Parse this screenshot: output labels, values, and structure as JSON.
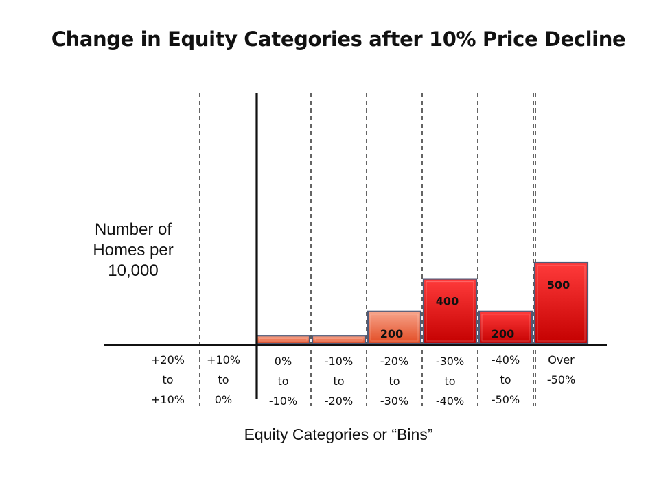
{
  "chart_data": {
    "type": "bar",
    "title": "Change in Equity Categories after 10% Price Decline",
    "ylabel": "Number of Homes per 10,000",
    "xlabel": "Equity Categories or “Bins”",
    "categories": [
      [
        "+20%",
        "to",
        "+10%"
      ],
      [
        "+10%",
        "to",
        "0%"
      ],
      [
        "0%",
        "to",
        "-10%"
      ],
      [
        "-10%",
        "to",
        "-20%"
      ],
      [
        "-20%",
        "to",
        "-30%"
      ],
      [
        "-30%",
        "to",
        "-40%"
      ],
      [
        "-40%",
        "to",
        "-50%"
      ],
      [
        "Over",
        "-50%"
      ]
    ],
    "values": [
      0,
      0,
      50,
      50,
      200,
      400,
      200,
      500
    ],
    "value_labels": [
      "",
      "",
      "",
      "",
      "200",
      "400",
      "200",
      "500"
    ],
    "ylim": [
      0,
      600
    ],
    "colors": {
      "bar_light_top": "#f7a58c",
      "bar_light_bottom": "#e8552b",
      "bar_red_top": "#ff4040",
      "bar_red_bottom": "#c80000",
      "bar_border": "#4f5a78"
    }
  }
}
